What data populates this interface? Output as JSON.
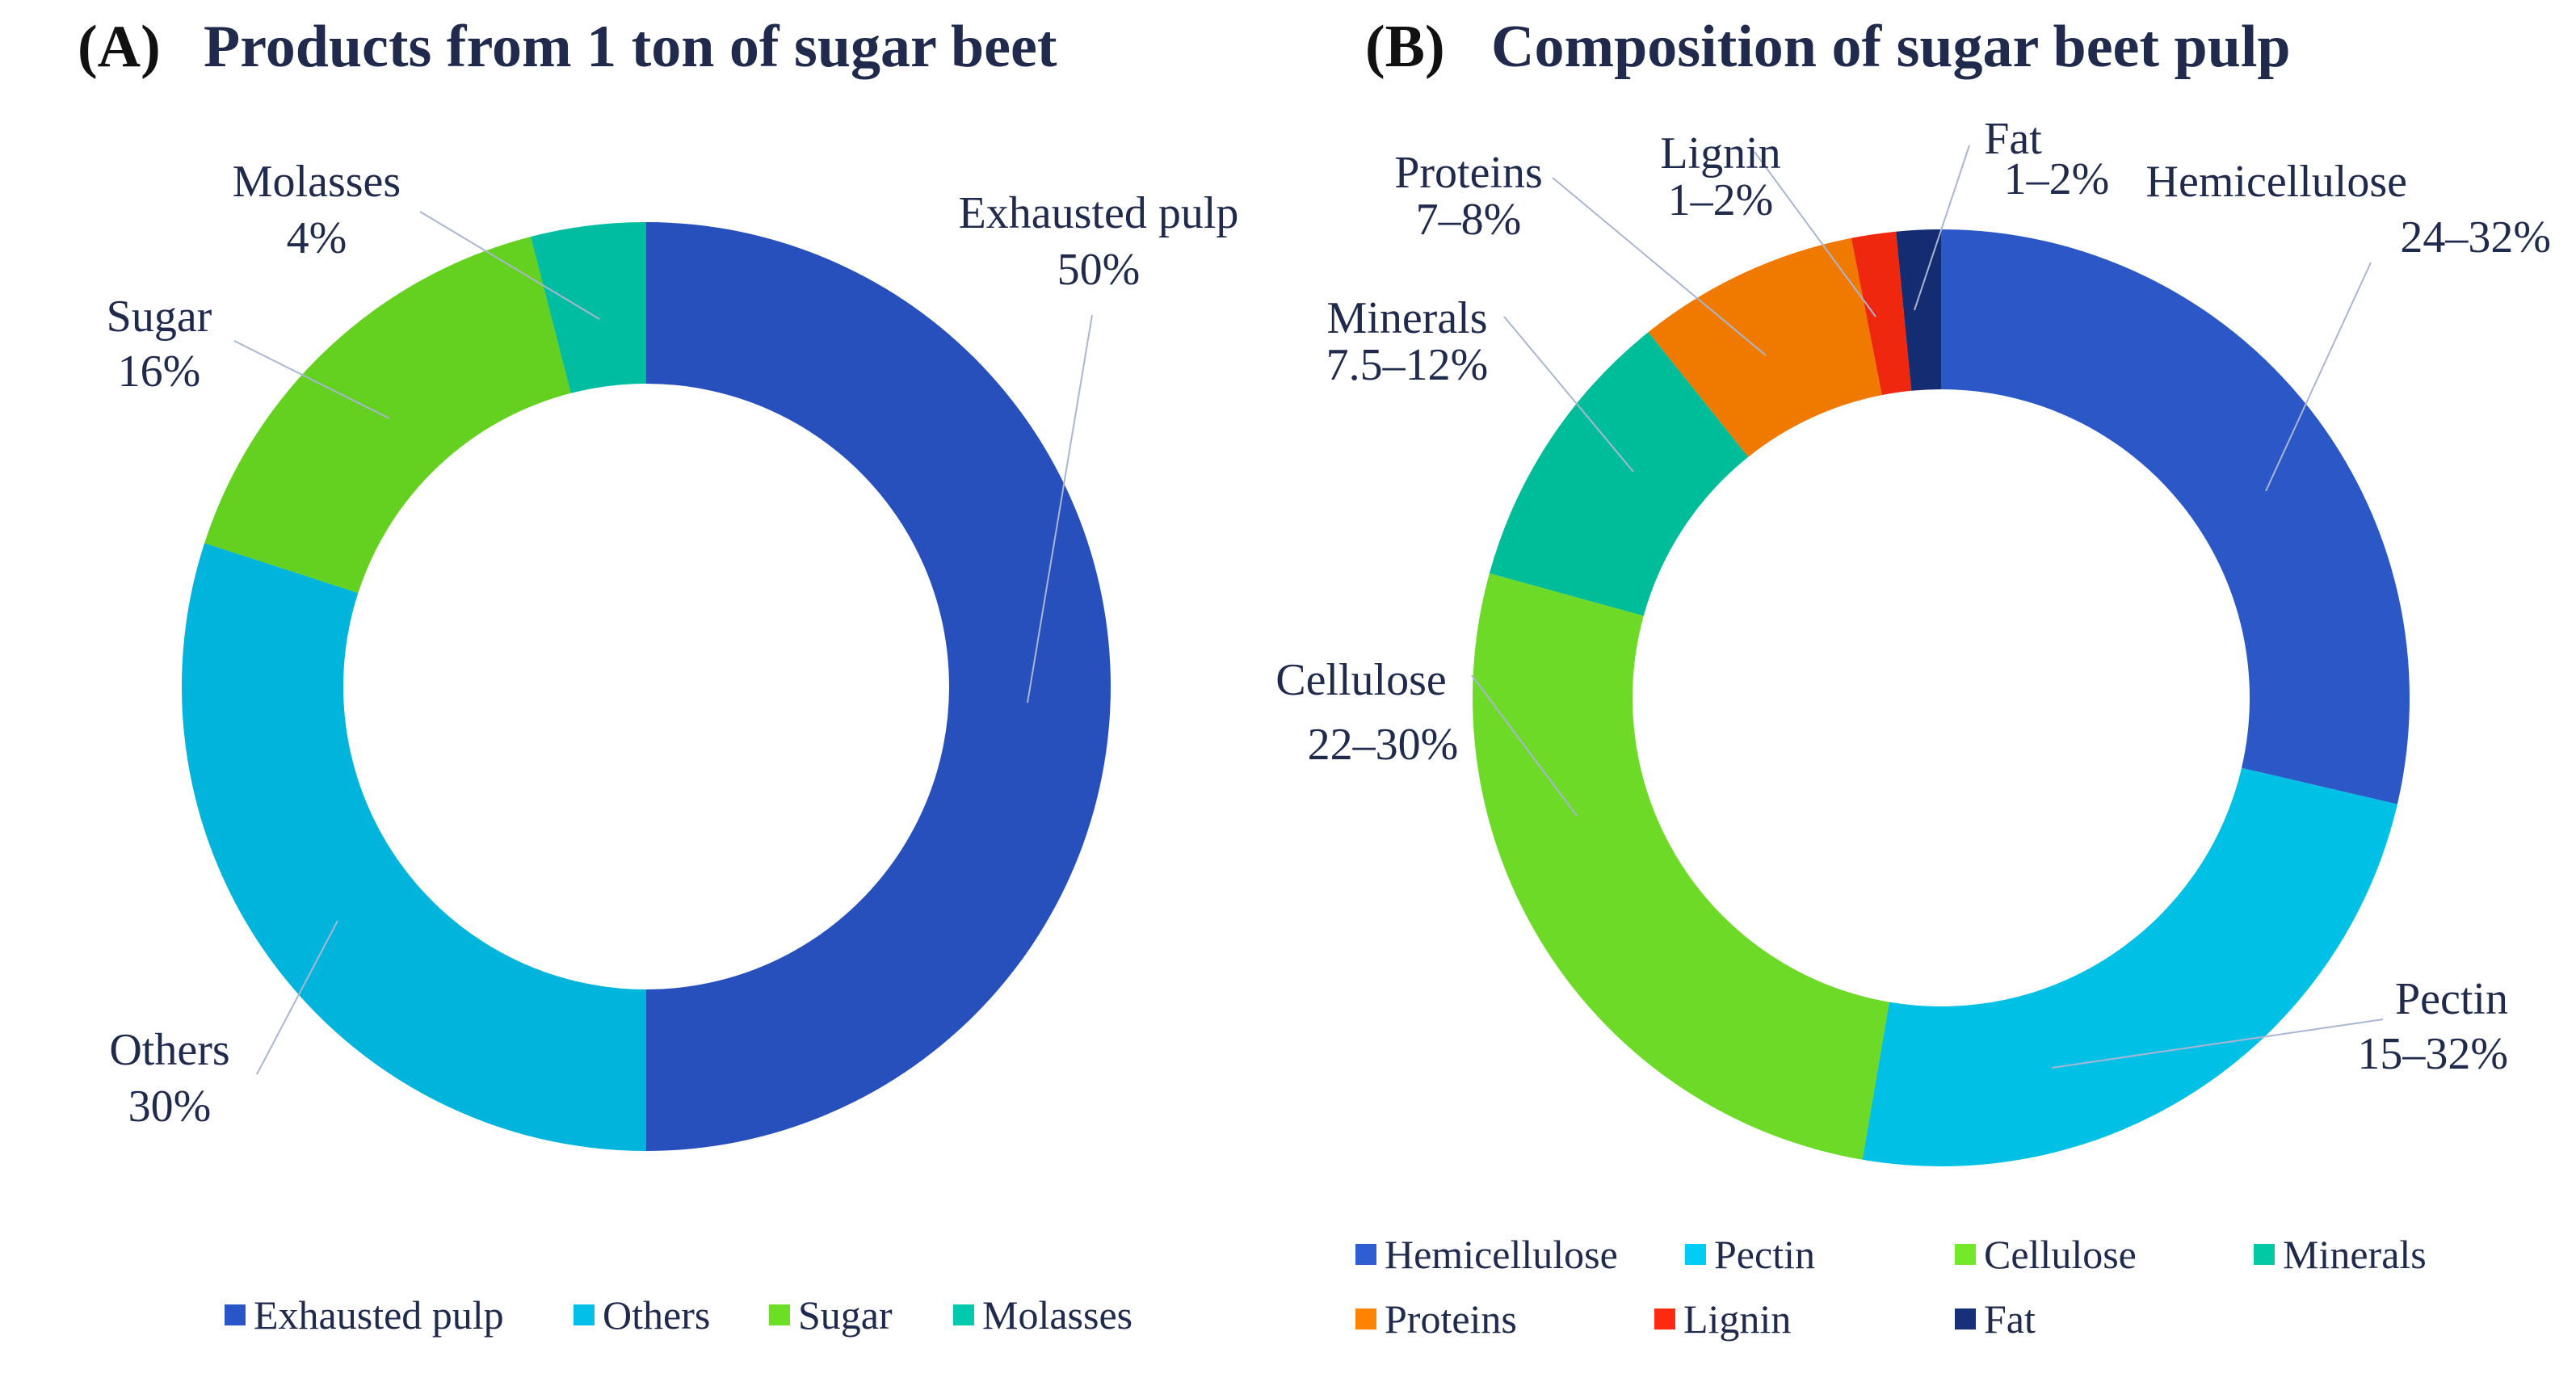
{
  "chart_data": [
    {
      "type": "pie",
      "variant": "donut",
      "panel_tag": "(A)",
      "title": "Products from 1 ton of sugar beet",
      "legend_position": "bottom",
      "slices": [
        {
          "name": "Exhausted pulp",
          "value": 50,
          "label": "50%",
          "color": "#2a55c8"
        },
        {
          "name": "Others",
          "value": 30,
          "label": "30%",
          "color": "#00c0ea"
        },
        {
          "name": "Sugar",
          "value": 16,
          "label": "16%",
          "color": "#6bdf24"
        },
        {
          "name": "Molasses",
          "value": 4,
          "label": "4%",
          "color": "#00c9ad"
        }
      ]
    },
    {
      "type": "pie",
      "variant": "donut",
      "panel_tag": "(B)",
      "title": "Composition of sugar beet pulp",
      "legend_position": "bottom",
      "slices": [
        {
          "name": "Hemicellulose",
          "value": 28,
          "label": "24–32%",
          "color": "#2f5ed4"
        },
        {
          "name": "Pectin",
          "value": 23.5,
          "label": "15–32%",
          "color": "#00cdf5"
        },
        {
          "name": "Cellulose",
          "value": 26,
          "label": "22–30%",
          "color": "#74e82b"
        },
        {
          "name": "Minerals",
          "value": 9.75,
          "label": "7.5–12%",
          "color": "#00c9a3"
        },
        {
          "name": "Proteins",
          "value": 7.5,
          "label": "7–8%",
          "color": "#ff8200"
        },
        {
          "name": "Lignin",
          "value": 1.5,
          "label": "1–2%",
          "color": "#ff2a10"
        },
        {
          "name": "Fat",
          "value": 1.5,
          "label": "1–2%",
          "color": "#16307a"
        }
      ]
    }
  ]
}
